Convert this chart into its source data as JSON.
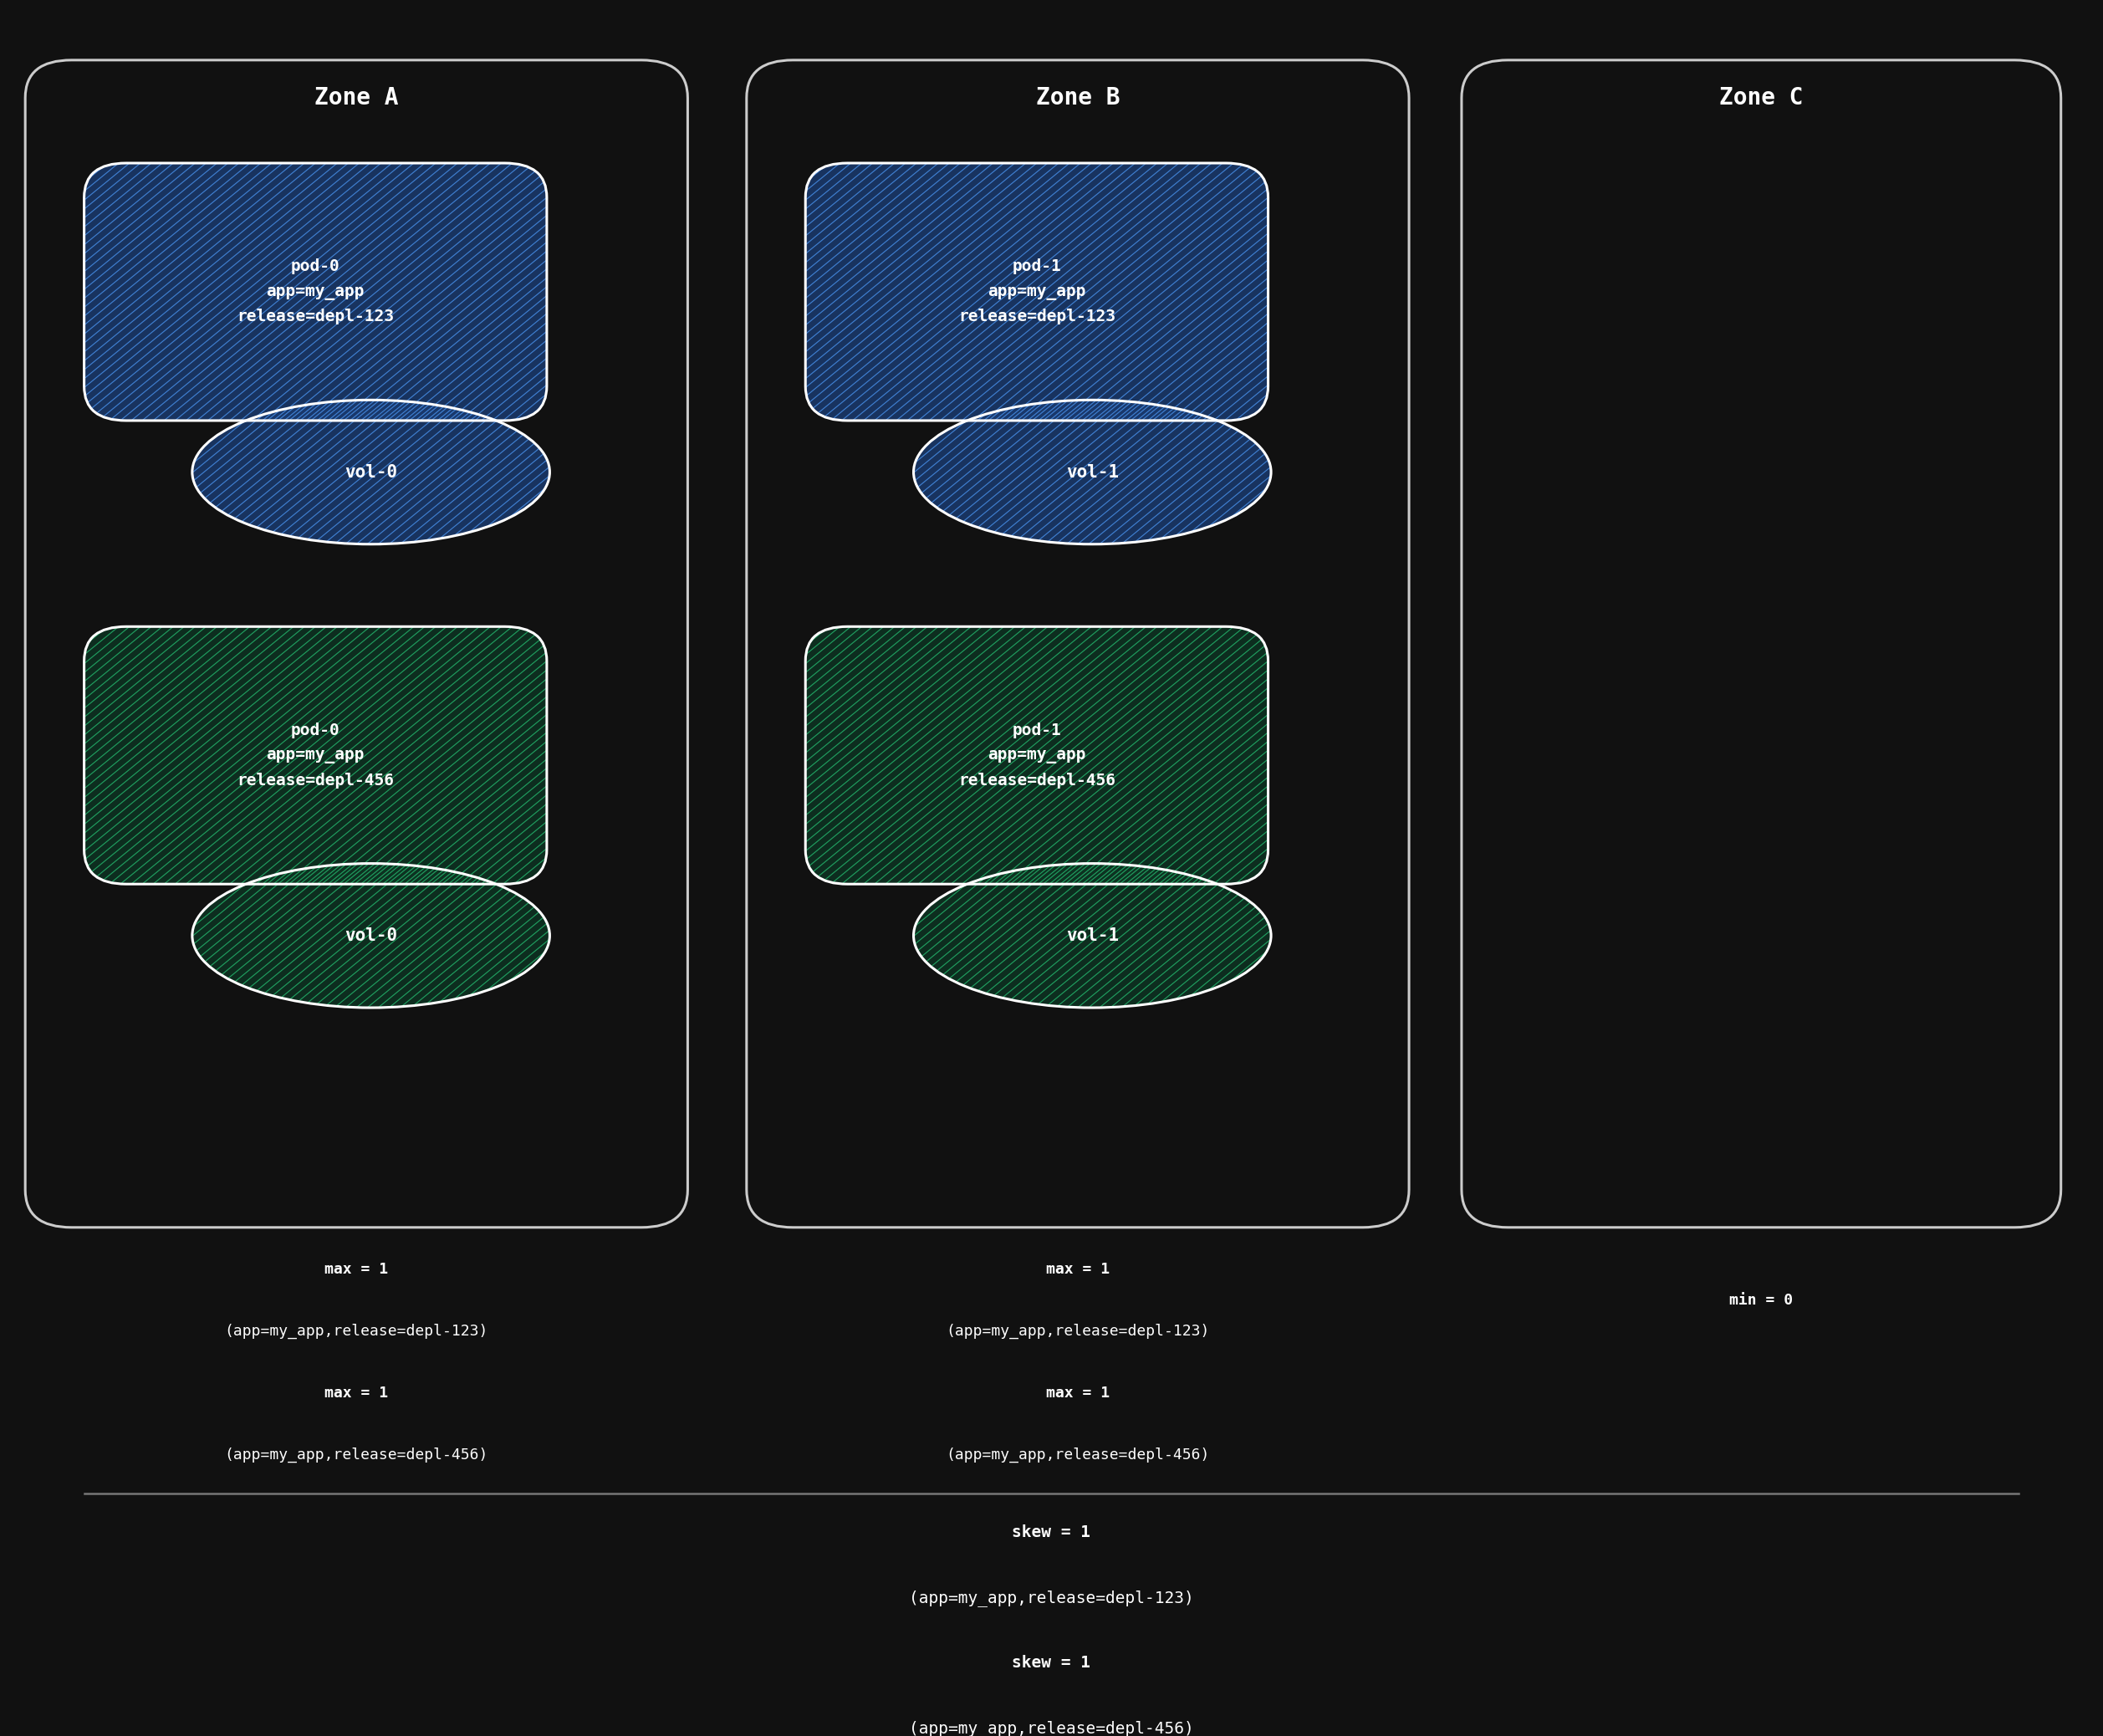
{
  "background_color": "#111111",
  "zone_border_color": "#cccccc",
  "zone_titles": [
    "Zone A",
    "Zone B",
    "Zone C"
  ],
  "blue_color": "#1a3a6e",
  "blue_hatch_color": "#4488dd",
  "green_color": "#0d3322",
  "green_hatch_color": "#22aa66",
  "white": "#ffffff",
  "font_family": "monospace",
  "blue_pod_lines_A": [
    "pod-0",
    "app=my_app",
    "release=depl-123"
  ],
  "green_pod_lines_A": [
    "pod-0",
    "app=my_app",
    "release=depl-456"
  ],
  "blue_pod_lines_B": [
    "pod-1",
    "app=my_app",
    "release=depl-123"
  ],
  "green_pod_lines_B": [
    "pod-1",
    "app=my_app",
    "release=depl-456"
  ],
  "vol_blue_A": "vol-0",
  "vol_green_A": "vol-0",
  "vol_blue_B": "vol-1",
  "vol_green_B": "vol-1",
  "bottom_text_A": [
    "max = 1",
    "(app=my_app,release=depl-123)",
    "max = 1",
    "(app=my_app,release=depl-456)"
  ],
  "bottom_text_B": [
    "max = 1",
    "(app=my_app,release=depl-123)",
    "max = 1",
    "(app=my_app,release=depl-456)"
  ],
  "bottom_text_C": [
    "min = 0"
  ],
  "skew_text": [
    "skew = 1",
    "(app=my_app,release=depl-123)",
    "skew = 1",
    "(app=my_app,release=depl-456)"
  ]
}
